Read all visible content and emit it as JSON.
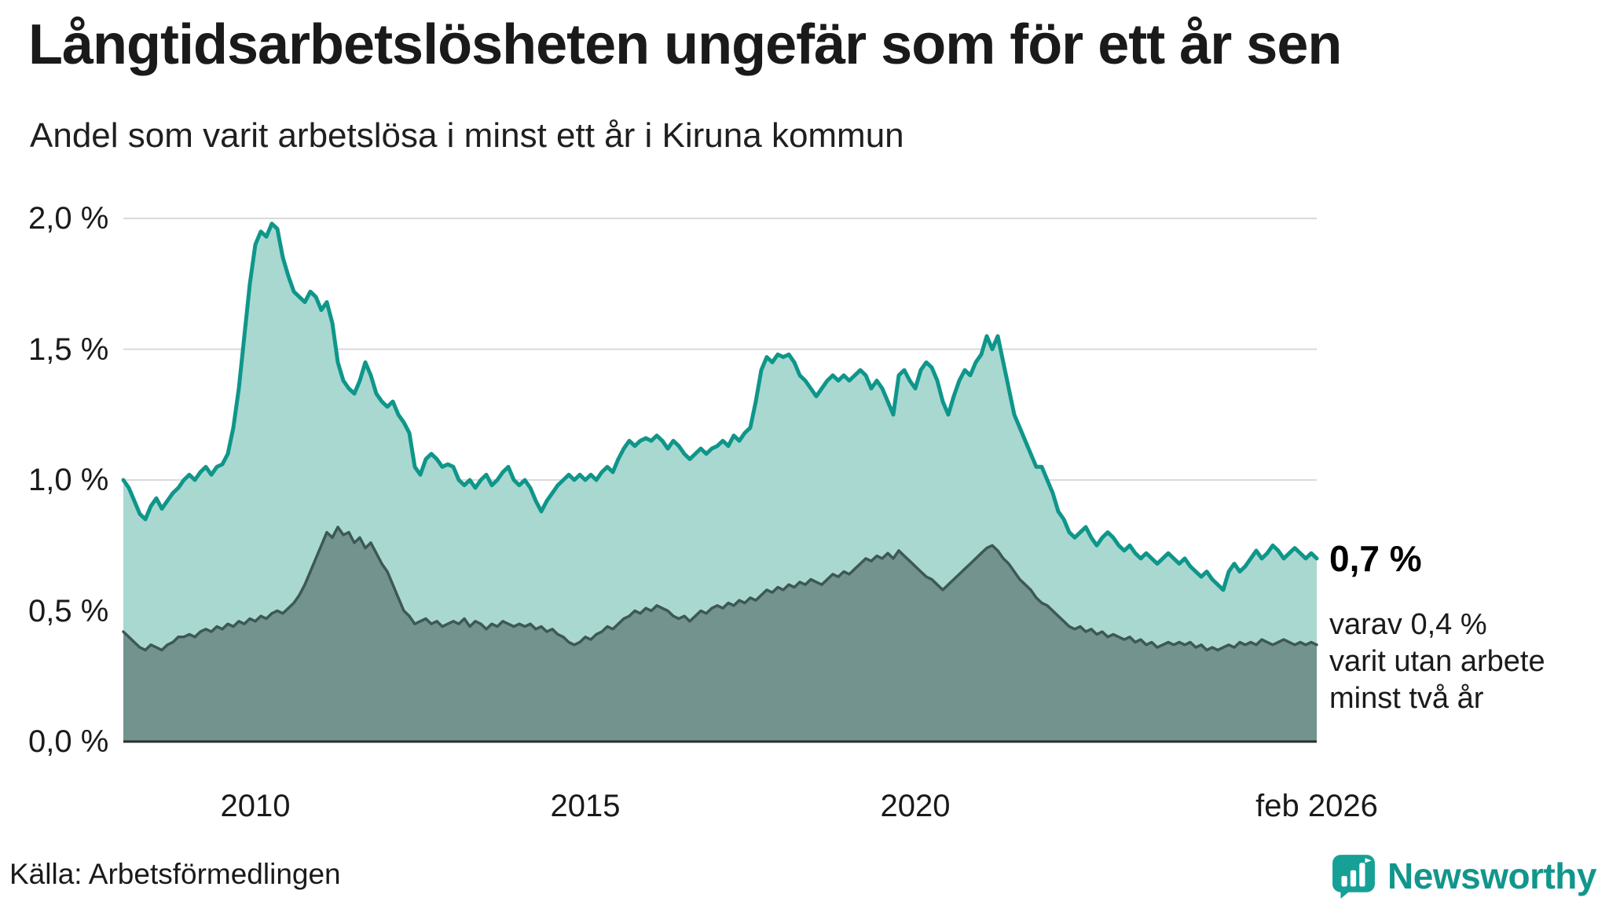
{
  "header": {
    "title": "Långtidsarbetslösheten ungefär som för ett år sen",
    "subtitle": "Andel som varit arbetslösa i minst ett år i Kiruna kommun"
  },
  "annotations": {
    "value": "0,7 %",
    "note_lines": [
      "varav 0,4 %",
      "varit utan arbete",
      "minst två år"
    ]
  },
  "footer": {
    "source": "Källa: Arbetsförmedlingen",
    "brand": "Newsworthy"
  },
  "colors": {
    "area_total": "#a9d8d1",
    "line_total": "#0f968a",
    "area_two_year": "#72938e",
    "line_two_year": "#3d5954",
    "grid": "#d9d9d9",
    "baseline": "#2d2d2d",
    "text": "#1a1a1a",
    "brand_teal": "#16a096"
  },
  "chart_data": {
    "type": "area",
    "title": "Långtidsarbetslösheten ungefär som för ett år sen",
    "subtitle": "Andel som varit arbetslösa i minst ett år i Kiruna kommun",
    "grid": true,
    "x_axis": {
      "min": 2008.0,
      "max": 2026.0833,
      "start": "2008-01",
      "end": "2026-02",
      "step": "month",
      "ticks": [
        {
          "v": 2010,
          "label": "2010"
        },
        {
          "v": 2015,
          "label": "2015"
        },
        {
          "v": 2020,
          "label": "2020"
        },
        {
          "v": 2026.0833,
          "label": "feb 2026"
        }
      ]
    },
    "y_axis": {
      "min": 0,
      "max": 2.0,
      "unit": "%",
      "ticks": [
        {
          "v": 0.0,
          "label": "0,0 %"
        },
        {
          "v": 0.5,
          "label": "0,5 %"
        },
        {
          "v": 1.0,
          "label": "1,0 %"
        },
        {
          "v": 1.5,
          "label": "1,5 %"
        },
        {
          "v": 2.0,
          "label": "2,0 %"
        }
      ]
    },
    "series": [
      {
        "name": "arbetslösa minst ett år",
        "current_label": "0,7 %",
        "values": [
          1.0,
          0.97,
          0.92,
          0.87,
          0.85,
          0.9,
          0.93,
          0.89,
          0.92,
          0.95,
          0.97,
          1.0,
          1.02,
          1.0,
          1.03,
          1.05,
          1.02,
          1.05,
          1.06,
          1.1,
          1.2,
          1.35,
          1.55,
          1.75,
          1.9,
          1.95,
          1.93,
          1.98,
          1.96,
          1.85,
          1.78,
          1.72,
          1.7,
          1.68,
          1.72,
          1.7,
          1.65,
          1.68,
          1.6,
          1.45,
          1.38,
          1.35,
          1.33,
          1.38,
          1.45,
          1.4,
          1.33,
          1.3,
          1.28,
          1.3,
          1.25,
          1.22,
          1.18,
          1.05,
          1.02,
          1.08,
          1.1,
          1.08,
          1.05,
          1.06,
          1.05,
          1.0,
          0.98,
          1.0,
          0.97,
          1.0,
          1.02,
          0.98,
          1.0,
          1.03,
          1.05,
          1.0,
          0.98,
          1.0,
          0.97,
          0.92,
          0.88,
          0.92,
          0.95,
          0.98,
          1.0,
          1.02,
          1.0,
          1.02,
          1.0,
          1.02,
          1.0,
          1.03,
          1.05,
          1.03,
          1.08,
          1.12,
          1.15,
          1.13,
          1.15,
          1.16,
          1.15,
          1.17,
          1.15,
          1.12,
          1.15,
          1.13,
          1.1,
          1.08,
          1.1,
          1.12,
          1.1,
          1.12,
          1.13,
          1.15,
          1.13,
          1.17,
          1.15,
          1.18,
          1.2,
          1.3,
          1.42,
          1.47,
          1.45,
          1.48,
          1.47,
          1.48,
          1.45,
          1.4,
          1.38,
          1.35,
          1.32,
          1.35,
          1.38,
          1.4,
          1.38,
          1.4,
          1.38,
          1.4,
          1.42,
          1.4,
          1.35,
          1.38,
          1.35,
          1.3,
          1.25,
          1.4,
          1.42,
          1.38,
          1.35,
          1.42,
          1.45,
          1.43,
          1.38,
          1.3,
          1.25,
          1.32,
          1.38,
          1.42,
          1.4,
          1.45,
          1.48,
          1.55,
          1.5,
          1.55,
          1.45,
          1.35,
          1.25,
          1.2,
          1.15,
          1.1,
          1.05,
          1.05,
          1.0,
          0.95,
          0.88,
          0.85,
          0.8,
          0.78,
          0.8,
          0.82,
          0.78,
          0.75,
          0.78,
          0.8,
          0.78,
          0.75,
          0.73,
          0.75,
          0.72,
          0.7,
          0.72,
          0.7,
          0.68,
          0.7,
          0.72,
          0.7,
          0.68,
          0.7,
          0.67,
          0.65,
          0.63,
          0.65,
          0.62,
          0.6,
          0.58,
          0.65,
          0.68,
          0.65,
          0.67,
          0.7,
          0.73,
          0.7,
          0.72,
          0.75,
          0.73,
          0.7,
          0.72,
          0.74,
          0.72,
          0.7,
          0.72,
          0.7
        ]
      },
      {
        "name": "arbetslösa minst två år",
        "current_label": "0,4 %",
        "values": [
          0.42,
          0.4,
          0.38,
          0.36,
          0.35,
          0.37,
          0.36,
          0.35,
          0.37,
          0.38,
          0.4,
          0.4,
          0.41,
          0.4,
          0.42,
          0.43,
          0.42,
          0.44,
          0.43,
          0.45,
          0.44,
          0.46,
          0.45,
          0.47,
          0.46,
          0.48,
          0.47,
          0.49,
          0.5,
          0.49,
          0.51,
          0.53,
          0.56,
          0.6,
          0.65,
          0.7,
          0.75,
          0.8,
          0.78,
          0.82,
          0.79,
          0.8,
          0.76,
          0.78,
          0.74,
          0.76,
          0.72,
          0.68,
          0.65,
          0.6,
          0.55,
          0.5,
          0.48,
          0.45,
          0.46,
          0.47,
          0.45,
          0.46,
          0.44,
          0.45,
          0.46,
          0.45,
          0.47,
          0.44,
          0.46,
          0.45,
          0.43,
          0.45,
          0.44,
          0.46,
          0.45,
          0.44,
          0.45,
          0.44,
          0.45,
          0.43,
          0.44,
          0.42,
          0.43,
          0.41,
          0.4,
          0.38,
          0.37,
          0.38,
          0.4,
          0.39,
          0.41,
          0.42,
          0.44,
          0.43,
          0.45,
          0.47,
          0.48,
          0.5,
          0.49,
          0.51,
          0.5,
          0.52,
          0.51,
          0.5,
          0.48,
          0.47,
          0.48,
          0.46,
          0.48,
          0.5,
          0.49,
          0.51,
          0.52,
          0.51,
          0.53,
          0.52,
          0.54,
          0.53,
          0.55,
          0.54,
          0.56,
          0.58,
          0.57,
          0.59,
          0.58,
          0.6,
          0.59,
          0.61,
          0.6,
          0.62,
          0.61,
          0.6,
          0.62,
          0.64,
          0.63,
          0.65,
          0.64,
          0.66,
          0.68,
          0.7,
          0.69,
          0.71,
          0.7,
          0.72,
          0.7,
          0.73,
          0.71,
          0.69,
          0.67,
          0.65,
          0.63,
          0.62,
          0.6,
          0.58,
          0.6,
          0.62,
          0.64,
          0.66,
          0.68,
          0.7,
          0.72,
          0.74,
          0.75,
          0.73,
          0.7,
          0.68,
          0.65,
          0.62,
          0.6,
          0.58,
          0.55,
          0.53,
          0.52,
          0.5,
          0.48,
          0.46,
          0.44,
          0.43,
          0.44,
          0.42,
          0.43,
          0.41,
          0.42,
          0.4,
          0.41,
          0.4,
          0.39,
          0.4,
          0.38,
          0.39,
          0.37,
          0.38,
          0.36,
          0.37,
          0.38,
          0.37,
          0.38,
          0.37,
          0.38,
          0.36,
          0.37,
          0.35,
          0.36,
          0.35,
          0.36,
          0.37,
          0.36,
          0.38,
          0.37,
          0.38,
          0.37,
          0.39,
          0.38,
          0.37,
          0.38,
          0.39,
          0.38,
          0.37,
          0.38,
          0.37,
          0.38,
          0.37
        ]
      }
    ]
  }
}
